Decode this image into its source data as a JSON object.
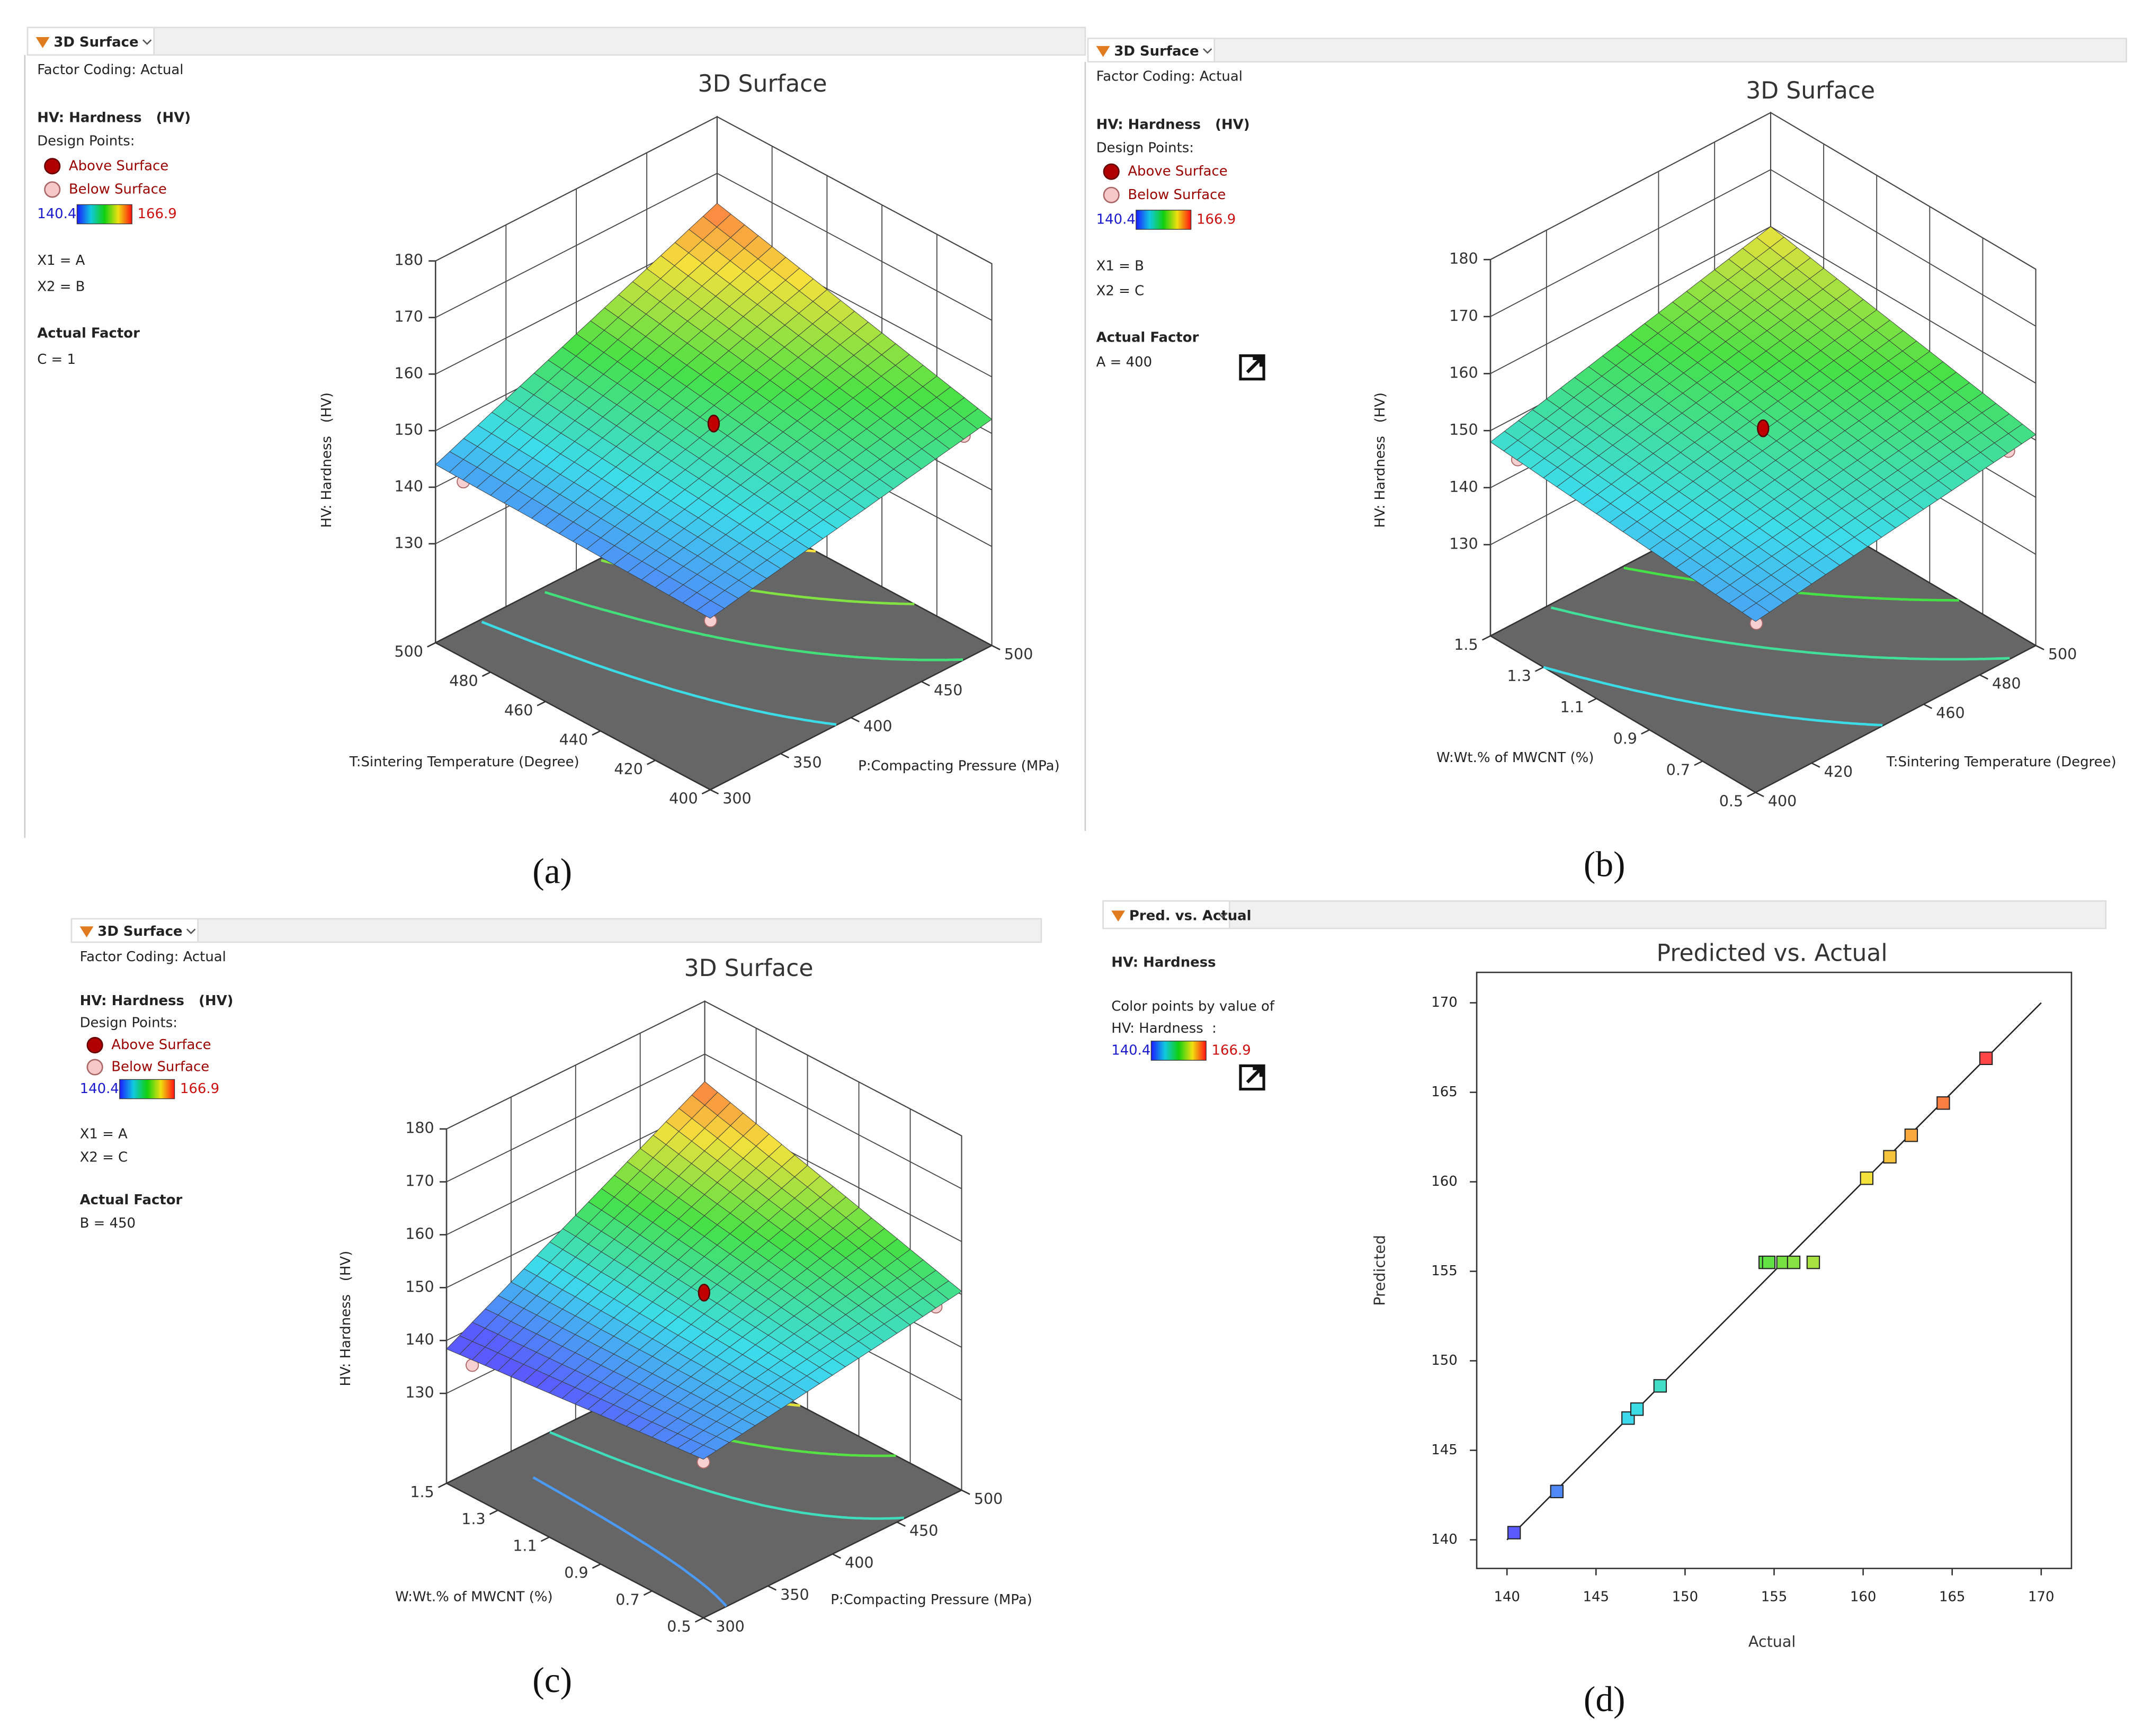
{
  "chart_data": [
    {
      "type": "surface3d",
      "tab": "3D Surface",
      "factor_coding": "Factor Coding: Actual",
      "response": "HV: Hardness   (HV)",
      "design_points": "Design Points:",
      "legend": [
        "Above Surface",
        "Below Surface"
      ],
      "color_range": [
        140.4,
        166.9
      ],
      "x1": "X1 = A",
      "x2": "X2 = B",
      "actual_factor": "Actual Factor",
      "actual_factor_value": "C = 1",
      "title": "3D Surface",
      "zlabel": "HV: Hardness   (HV)",
      "xlabel": "P:Compacting Pressure (MPa)",
      "xlim": [
        300,
        500
      ],
      "xticks": [
        300,
        350,
        400,
        450,
        500
      ],
      "ylabel": "T:Sintering Temperature (Degree)",
      "ylim": [
        400,
        500
      ],
      "yticks": [
        400,
        420,
        440,
        460,
        480,
        500
      ],
      "zlim": [
        112.5,
        180
      ],
      "zticks": [
        130,
        140,
        150,
        160,
        170,
        180
      ],
      "panel_label": "(a)"
    },
    {
      "type": "surface3d",
      "tab": "3D Surface",
      "factor_coding": "Factor Coding: Actual",
      "response": "HV: Hardness   (HV)",
      "design_points": "Design Points:",
      "legend": [
        "Above Surface",
        "Below Surface"
      ],
      "color_range": [
        140.4,
        166.9
      ],
      "x1": "X1 = B",
      "x2": "X2 = C",
      "actual_factor": "Actual Factor",
      "actual_factor_value": "A = 400",
      "title": "3D Surface",
      "zlabel": "HV: Hardness   (HV)",
      "xlabel": "T:Sintering Temperature (Degree)",
      "xlim": [
        400,
        500
      ],
      "xticks": [
        400,
        420,
        460,
        480,
        500
      ],
      "ylabel": "W:Wt.% of MWCNT (%)",
      "ylim": [
        0.5,
        1.5
      ],
      "yticks": [
        0.5,
        0.7,
        0.9,
        1.1,
        1.3,
        1.5
      ],
      "zlim": [
        114,
        180
      ],
      "zticks": [
        130,
        140,
        150,
        160,
        170,
        180
      ],
      "panel_label": "(b)"
    },
    {
      "type": "surface3d",
      "tab": "3D Surface",
      "factor_coding": "Factor Coding: Actual",
      "response": "HV: Hardness   (HV)",
      "design_points": "Design Points:",
      "legend": [
        "Above Surface",
        "Below Surface"
      ],
      "color_range": [
        140.4,
        166.9
      ],
      "x1": "X1 = A",
      "x2": "X2 = C",
      "actual_factor": "Actual Factor",
      "actual_factor_value": "B = 450",
      "title": "3D Surface",
      "zlabel": "HV: Hardness   (HV)",
      "xlabel": "P:Compacting Pressure (MPa)",
      "xlim": [
        300,
        500
      ],
      "xticks": [
        300,
        350,
        400,
        450,
        500
      ],
      "ylabel": "W:Wt.% of MWCNT (%)",
      "ylim": [
        0.5,
        1.5
      ],
      "yticks": [
        0.5,
        0.7,
        0.9,
        1.1,
        1.3,
        1.5
      ],
      "zlim": [
        113,
        180
      ],
      "zticks": [
        130,
        140,
        150,
        160,
        170,
        180
      ],
      "panel_label": "(c)"
    },
    {
      "type": "scatter",
      "tab": "Pred. vs. Actual",
      "response": "HV: Hardness",
      "color_note": "Color points by value of",
      "color_note_response": "HV: Hardness  :",
      "color_range": [
        140.4,
        166.9
      ],
      "title": "Predicted vs. Actual",
      "xlabel": "Actual",
      "ylabel": "Predicted",
      "x": [
        140.4,
        142.8,
        146.8,
        147.3,
        148.6,
        154.5,
        154.7,
        155.5,
        156.1,
        157.2,
        160.2,
        161.5,
        162.7,
        164.5,
        166.9
      ],
      "values": [
        140.4,
        142.7,
        146.8,
        147.3,
        148.6,
        155.5,
        155.5,
        155.5,
        155.5,
        155.5,
        160.2,
        161.4,
        162.6,
        164.4,
        166.9
      ],
      "xlim": [
        138.3,
        171.7
      ],
      "xticks": [
        140,
        145,
        150,
        155,
        160,
        165,
        170
      ],
      "ylim": [
        138.4,
        171.7
      ],
      "yticks": [
        140,
        145,
        150,
        155,
        160,
        165,
        170
      ],
      "panel_label": "(d)"
    }
  ]
}
